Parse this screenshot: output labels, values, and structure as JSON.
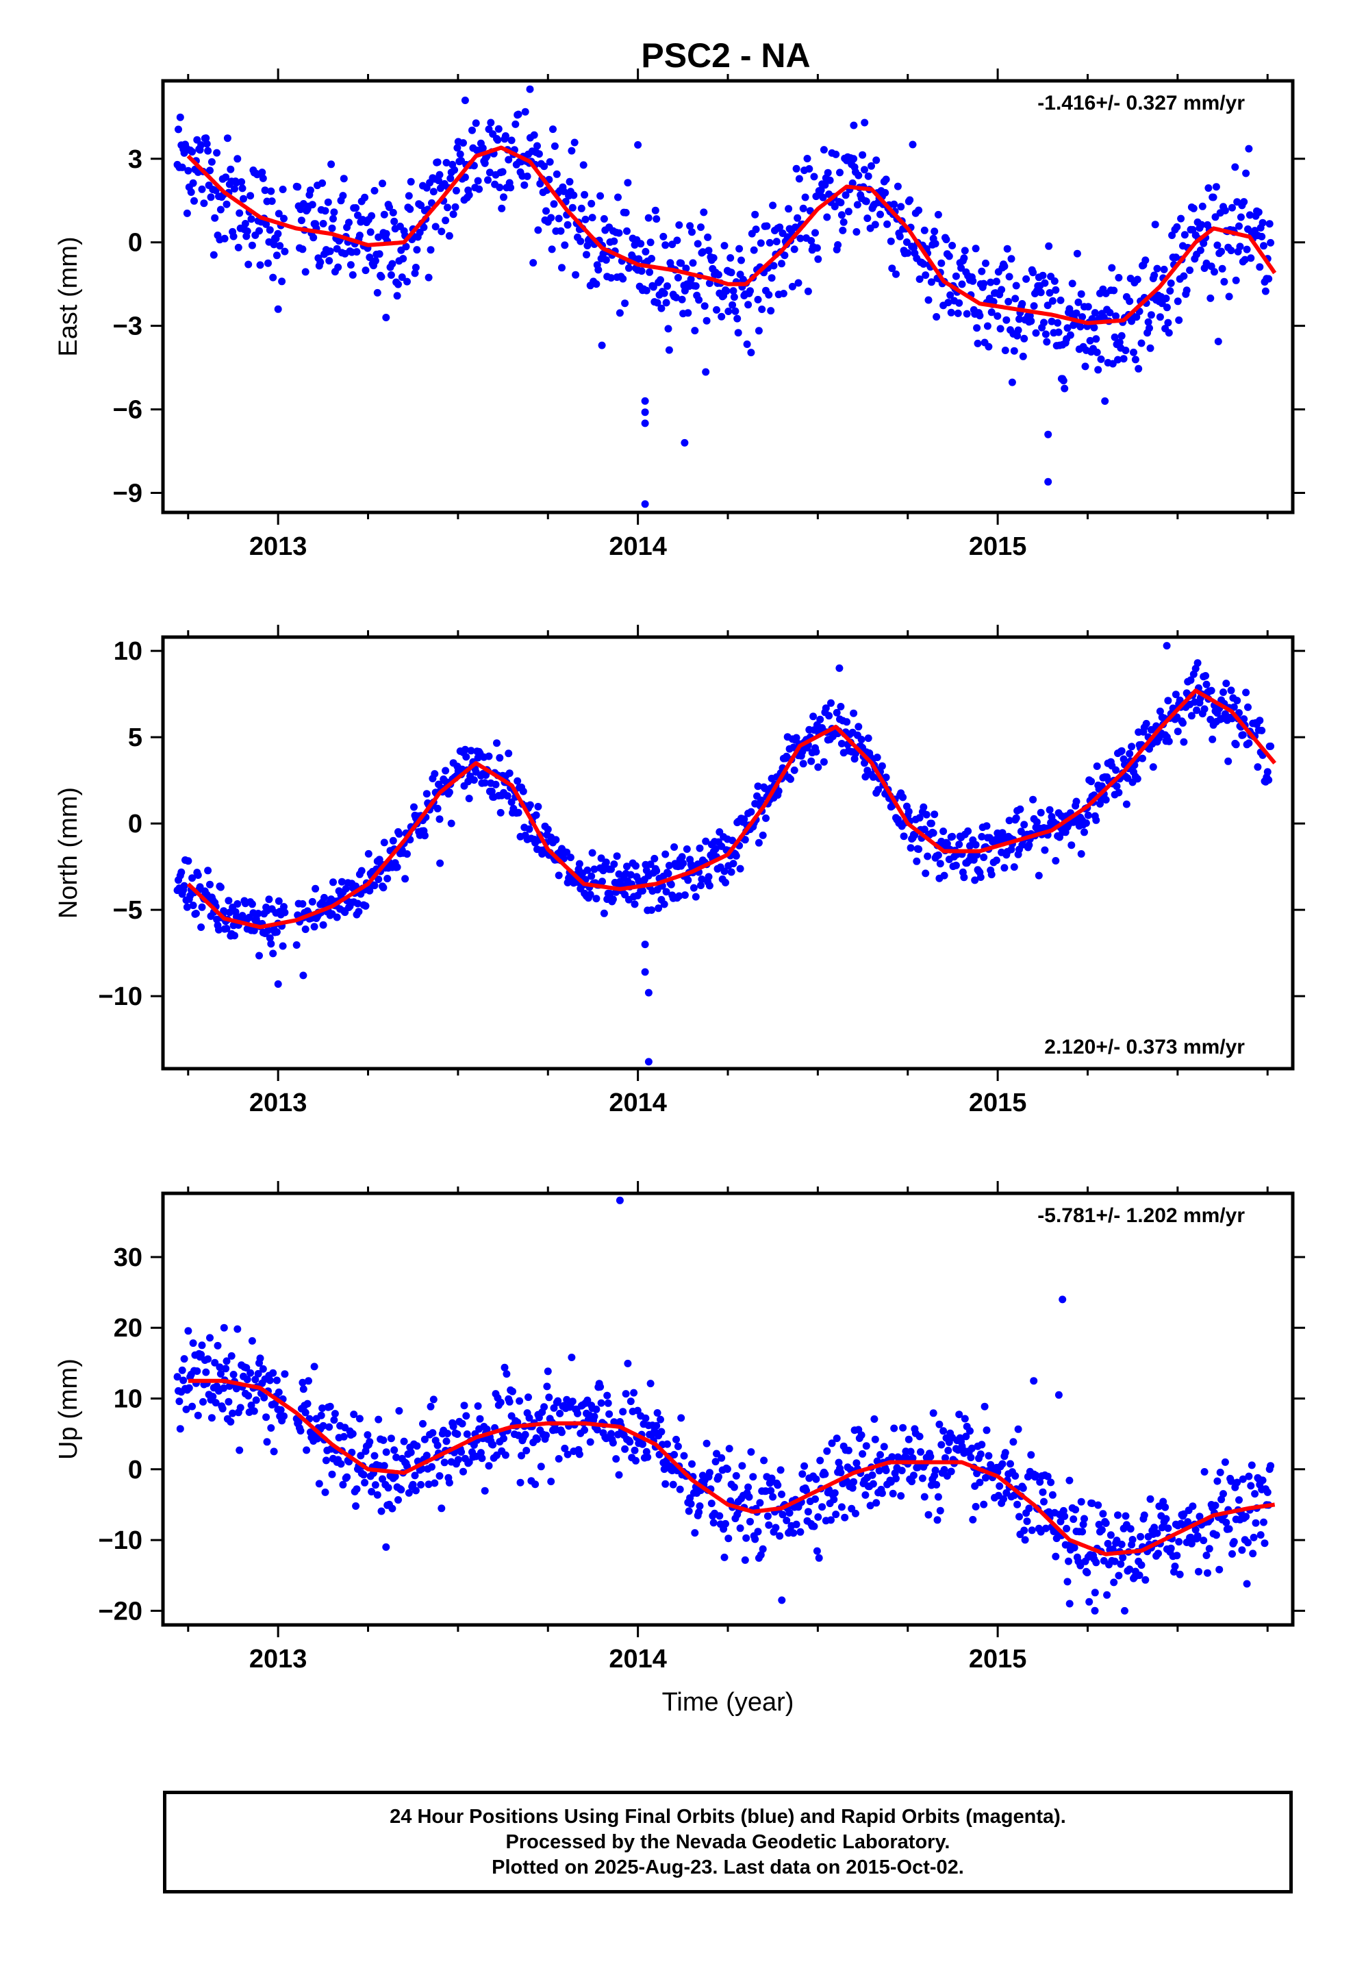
{
  "title": "PSC2 - NA",
  "chart_data": [
    {
      "type": "scatter",
      "name": "east",
      "ylabel": "East (mm)",
      "xlabel": "",
      "xlim": [
        2012.68,
        2015.82
      ],
      "ylim": [
        -9.7,
        5.8
      ],
      "yticks": [
        {
          "v": 3,
          "t": "3"
        },
        {
          "v": 0,
          "t": "0"
        },
        {
          "v": -3,
          "t": "−3"
        },
        {
          "v": -6,
          "t": "−6"
        },
        {
          "v": -9,
          "t": "−9"
        }
      ],
      "xticks": [
        {
          "v": 2013,
          "t": "2013"
        },
        {
          "v": 2014,
          "t": "2014"
        },
        {
          "v": 2015,
          "t": "2015"
        }
      ],
      "rate": "-1.416+/- 0.327 mm/yr",
      "rate_position": "top-right",
      "fit_x": [
        2012.75,
        2012.85,
        2012.95,
        2013.05,
        2013.15,
        2013.25,
        2013.35,
        2013.45,
        2013.55,
        2013.62,
        2013.7,
        2013.8,
        2013.9,
        2014.0,
        2014.1,
        2014.2,
        2014.25,
        2014.3,
        2014.4,
        2014.5,
        2014.58,
        2014.65,
        2014.75,
        2014.85,
        2014.95,
        2015.05,
        2015.15,
        2015.25,
        2015.35,
        2015.45,
        2015.55,
        2015.6,
        2015.7,
        2015.77
      ],
      "fit_y": [
        3.1,
        1.8,
        0.9,
        0.5,
        0.3,
        -0.1,
        0.0,
        1.5,
        3.1,
        3.4,
        2.9,
        1.2,
        -0.2,
        -0.8,
        -1.0,
        -1.3,
        -1.5,
        -1.5,
        -0.3,
        1.2,
        2.0,
        1.9,
        0.5,
        -1.4,
        -2.2,
        -2.4,
        -2.6,
        -2.9,
        -2.8,
        -1.6,
        0.0,
        0.5,
        0.2,
        -1.1
      ],
      "scatter_sd": 1.0,
      "outliers": [
        [
          2013.0,
          -2.4
        ],
        [
          2013.3,
          -2.7
        ],
        [
          2013.9,
          -3.7
        ],
        [
          2014.0,
          3.5
        ],
        [
          2014.02,
          -5.7
        ],
        [
          2014.02,
          -6.1
        ],
        [
          2014.02,
          -6.5
        ],
        [
          2014.02,
          -9.4
        ],
        [
          2014.13,
          -7.2
        ],
        [
          2014.6,
          4.2
        ],
        [
          2014.63,
          4.3
        ],
        [
          2015.14,
          -6.9
        ],
        [
          2015.14,
          -8.6
        ],
        [
          2015.18,
          -4.9
        ],
        [
          2013.52,
          5.1
        ],
        [
          2013.7,
          5.5
        ]
      ]
    },
    {
      "type": "scatter",
      "name": "north",
      "ylabel": "North (mm)",
      "xlabel": "",
      "xlim": [
        2012.68,
        2015.82
      ],
      "ylim": [
        -14.2,
        10.8
      ],
      "yticks": [
        {
          "v": 10,
          "t": "10"
        },
        {
          "v": 5,
          "t": "5"
        },
        {
          "v": 0,
          "t": "0"
        },
        {
          "v": -5,
          "t": "−5"
        },
        {
          "v": -10,
          "t": "−10"
        }
      ],
      "xticks": [
        {
          "v": 2013,
          "t": "2013"
        },
        {
          "v": 2014,
          "t": "2014"
        },
        {
          "v": 2015,
          "t": "2015"
        }
      ],
      "rate": "2.120+/- 0.373 mm/yr",
      "rate_position": "bottom-right",
      "fit_x": [
        2012.75,
        2012.85,
        2012.95,
        2013.05,
        2013.15,
        2013.25,
        2013.35,
        2013.45,
        2013.55,
        2013.65,
        2013.75,
        2013.85,
        2013.95,
        2014.05,
        2014.15,
        2014.25,
        2014.35,
        2014.45,
        2014.55,
        2014.65,
        2014.75,
        2014.85,
        2014.95,
        2015.05,
        2015.15,
        2015.25,
        2015.35,
        2015.45,
        2015.55,
        2015.65,
        2015.77
      ],
      "fit_y": [
        -3.5,
        -5.5,
        -6.0,
        -5.6,
        -4.8,
        -3.5,
        -1.0,
        1.8,
        3.5,
        2.2,
        -1.5,
        -3.5,
        -3.8,
        -3.5,
        -2.8,
        -1.8,
        1.0,
        4.5,
        5.6,
        3.5,
        0.0,
        -1.6,
        -1.6,
        -1.0,
        -0.4,
        1.0,
        3.0,
        5.5,
        7.7,
        6.5,
        3.5
      ],
      "scatter_sd": 0.8,
      "outliers": [
        [
          2013.0,
          -9.3
        ],
        [
          2013.07,
          -8.8
        ],
        [
          2014.02,
          -7.0
        ],
        [
          2014.02,
          -8.6
        ],
        [
          2014.03,
          -9.8
        ],
        [
          2014.03,
          -13.8
        ],
        [
          2014.56,
          9.0
        ],
        [
          2015.47,
          10.3
        ],
        [
          2013.45,
          -2.3
        ]
      ]
    },
    {
      "type": "scatter",
      "name": "up",
      "ylabel": "Up (mm)",
      "xlabel": "Time (year)",
      "xlim": [
        2012.68,
        2015.82
      ],
      "ylim": [
        -22,
        39
      ],
      "yticks": [
        {
          "v": 30,
          "t": "30"
        },
        {
          "v": 20,
          "t": "20"
        },
        {
          "v": 10,
          "t": "10"
        },
        {
          "v": 0,
          "t": "0"
        },
        {
          "v": -10,
          "t": "−10"
        },
        {
          "v": -20,
          "t": "−20"
        }
      ],
      "xticks": [
        {
          "v": 2013,
          "t": "2013"
        },
        {
          "v": 2014,
          "t": "2014"
        },
        {
          "v": 2015,
          "t": "2015"
        }
      ],
      "rate": "-5.781+/- 1.202 mm/yr",
      "rate_position": "top-right",
      "fit_x": [
        2012.75,
        2012.85,
        2012.95,
        2013.05,
        2013.15,
        2013.25,
        2013.35,
        2013.45,
        2013.55,
        2013.65,
        2013.75,
        2013.85,
        2013.95,
        2014.05,
        2014.15,
        2014.25,
        2014.32,
        2014.4,
        2014.5,
        2014.6,
        2014.7,
        2014.8,
        2014.9,
        2015.0,
        2015.1,
        2015.2,
        2015.3,
        2015.4,
        2015.5,
        2015.6,
        2015.7,
        2015.77
      ],
      "fit_y": [
        12.5,
        12.5,
        11.5,
        8.0,
        3.5,
        0.0,
        -0.5,
        2.0,
        4.5,
        6.0,
        6.5,
        6.5,
        6.0,
        3.5,
        -1.5,
        -5.0,
        -6.0,
        -5.5,
        -3.0,
        -0.5,
        1.0,
        1.0,
        1.0,
        -1.0,
        -5.0,
        -10.0,
        -12.0,
        -11.5,
        -9.0,
        -6.5,
        -5.5,
        -5.0
      ],
      "scatter_sd": 3.2,
      "outliers": [
        [
          2013.95,
          38.0
        ],
        [
          2015.18,
          24.0
        ],
        [
          2015.17,
          10.5
        ],
        [
          2015.1,
          12.5
        ],
        [
          2014.4,
          -18.5
        ],
        [
          2013.3,
          -11.0
        ],
        [
          2012.85,
          20.0
        ],
        [
          2015.27,
          -20.0
        ],
        [
          2015.2,
          -19.0
        ]
      ]
    }
  ],
  "footer": {
    "line1": "24 Hour Positions Using Final Orbits (blue) and Rapid Orbits (magenta).",
    "line2": "Processed by the Nevada Geodetic Laboratory.",
    "line3": "Plotted on 2025-Aug-23. Last data on 2015-Oct-02."
  },
  "colors": {
    "points": "#0000ff",
    "fit": "#ff0000",
    "frame": "#000000"
  }
}
